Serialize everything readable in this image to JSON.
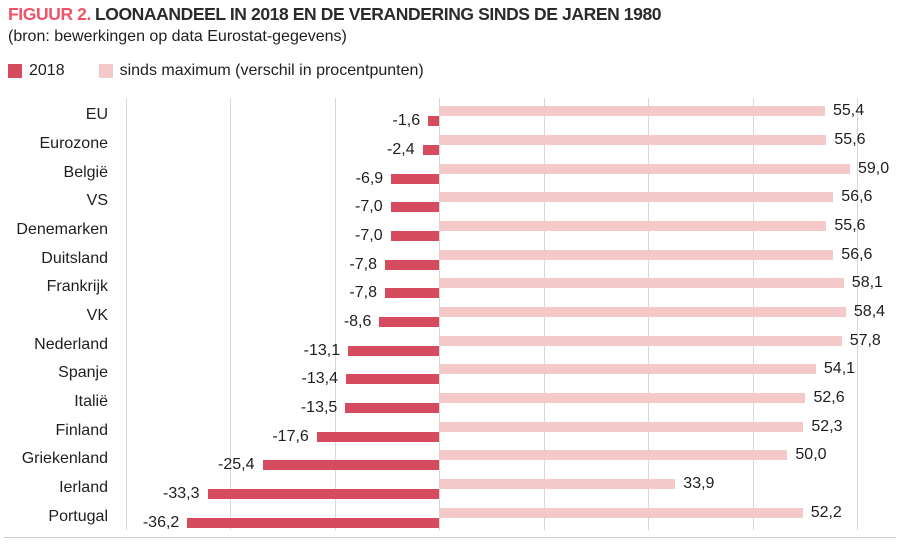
{
  "header": {
    "figure_label": "FIGUUR 2.",
    "title": "LOONAANDEEL IN 2018 EN DE VERANDERING SINDS DE JAREN 1980",
    "subtitle": "(bron: bewerkingen op data Eurostat-gegevens)"
  },
  "legend": [
    {
      "label": "2018",
      "color": "#d64c5e"
    },
    {
      "label": "sinds maximum (verschil in procentpunten)",
      "color": "#f3c9c9"
    }
  ],
  "colors": {
    "accent_title": "#ee5368",
    "bar_dark": "#d64c5e",
    "bar_light": "#f3c9c9",
    "gridline": "#d8d8d8",
    "axis_line": "#cfcfcf",
    "text": "#1f1f1f"
  },
  "chart_data": {
    "type": "bar",
    "orientation": "horizontal",
    "title": "FIGUUR 2. LOONAANDEEL IN 2018 EN DE VERANDERING SINDS DE JAREN 1980",
    "subtitle": "(bron: bewerkingen op data Eurostat-gegevens)",
    "categories": [
      "EU",
      "Eurozone",
      "België",
      "VS",
      "Denemarken",
      "Duitsland",
      "Frankrijk",
      "VK",
      "Nederland",
      "Spanje",
      "Italië",
      "Finland",
      "Griekenland",
      "Ierland",
      "Portugal"
    ],
    "series": [
      {
        "name": "2018",
        "color": "#d64c5e",
        "values": [
          -1.6,
          -2.4,
          -6.9,
          -7.0,
          -7.0,
          -7.8,
          -7.8,
          -8.6,
          -13.1,
          -13.4,
          -13.5,
          -17.6,
          -25.4,
          -33.3,
          -36.2
        ]
      },
      {
        "name": "sinds maximum (verschil in procentpunten)",
        "color": "#f3c9c9",
        "values": [
          55.4,
          55.6,
          59.0,
          56.6,
          55.6,
          56.6,
          58.1,
          58.4,
          57.8,
          54.1,
          52.6,
          52.3,
          50.0,
          33.9,
          52.2
        ]
      }
    ],
    "value_label_format": "one-decimal-comma",
    "xlim": [
      -45,
      60
    ],
    "gridlines": [
      -45,
      -30,
      -15,
      0,
      15,
      30,
      45,
      60
    ],
    "grid": "vertical-only",
    "axis_tick_labels_shown": false,
    "legend_position": "top-left"
  }
}
